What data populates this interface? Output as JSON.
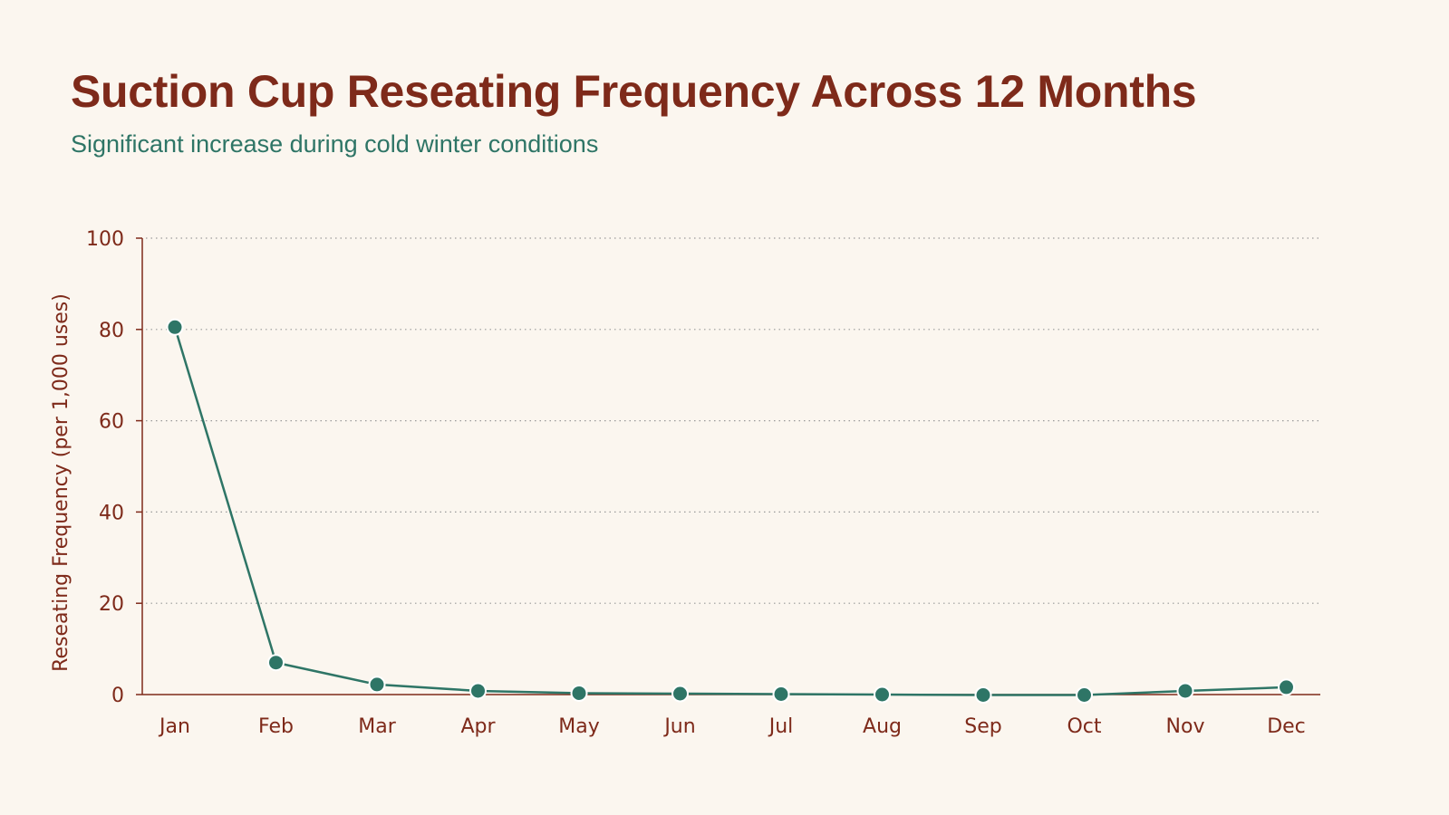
{
  "title": "Suction Cup Reseating Frequency Across 12 Months",
  "subtitle": "Significant increase during cold winter conditions",
  "colors": {
    "background": "#fbf6ef",
    "title": "#7e2a1a",
    "subtitle": "#2e7566",
    "axis": "#7e2a1a",
    "grid": "#9a9a9a",
    "series": "#2e7566",
    "marker_stroke": "#ffffff"
  },
  "chart_data": {
    "type": "line",
    "title": "Suction Cup Reseating Frequency Across 12 Months",
    "subtitle": "Significant increase during cold winter conditions",
    "xlabel": "",
    "ylabel": "Reseating Frequency (per 1,000 uses)",
    "categories": [
      "Jan",
      "Feb",
      "Mar",
      "Apr",
      "May",
      "Jun",
      "Jul",
      "Aug",
      "Sep",
      "Oct",
      "Nov",
      "Dec"
    ],
    "series": [
      {
        "values": [
          80.5,
          7.0,
          2.2,
          0.8,
          0.3,
          0.2,
          0.1,
          0.0,
          -0.1,
          -0.1,
          0.8,
          1.6
        ]
      }
    ],
    "ylim": [
      0,
      100
    ],
    "yticks": [
      0,
      20,
      40,
      60,
      80,
      100
    ],
    "grid": "horizontal-dotted",
    "legend": "none"
  }
}
